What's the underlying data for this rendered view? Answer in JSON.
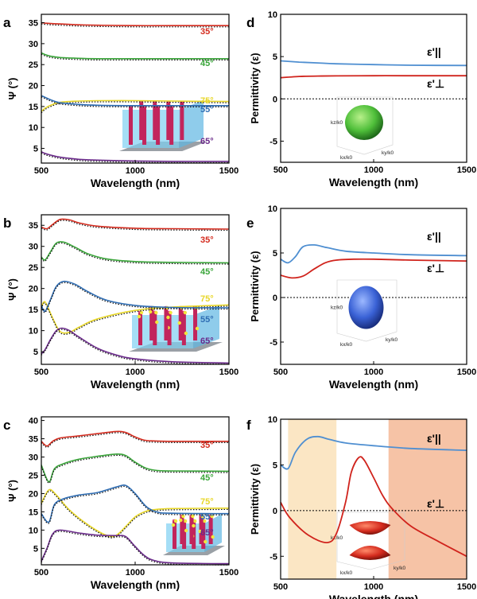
{
  "colors": {
    "red": "#d42b1e",
    "green": "#3aa53a",
    "yellow": "#e8d72a",
    "blue": "#2f6db3",
    "purple": "#6a2a8a",
    "perp": "#d0231c",
    "par": "#4f8fd1",
    "fit": "#111111",
    "band_yellow": "#fbe6c4",
    "band_orange": "#f6c3a6"
  },
  "chart_data": [
    {
      "panel": "a",
      "type": "line",
      "xlabel": "Wavelength (nm)",
      "ylabel": "Ψ (°)",
      "xlim": [
        500,
        1500
      ],
      "ylim": [
        1.5,
        37
      ],
      "xticks": [
        500,
        1000,
        1500
      ],
      "yticks": [
        5,
        10,
        15,
        20,
        25,
        30,
        35
      ],
      "inset": "nanorod-array",
      "series": [
        {
          "name": "35°",
          "color": "red",
          "x": [
            500,
            520,
            550,
            600,
            700,
            800,
            1000,
            1200,
            1500
          ],
          "y": [
            35.0,
            34.9,
            34.8,
            34.7,
            34.5,
            34.4,
            34.3,
            34.3,
            34.3
          ]
        },
        {
          "name": "45°",
          "color": "green",
          "x": [
            500,
            520,
            550,
            600,
            700,
            800,
            1000,
            1200,
            1500
          ],
          "y": [
            27.8,
            27.4,
            27.0,
            26.7,
            26.5,
            26.4,
            26.4,
            26.4,
            26.4
          ]
        },
        {
          "name": "75°",
          "color": "yellow",
          "x": [
            500,
            520,
            550,
            600,
            700,
            800,
            1000,
            1200,
            1500
          ],
          "y": [
            13.8,
            14.6,
            15.3,
            16.0,
            16.3,
            16.4,
            16.4,
            16.3,
            16.2
          ]
        },
        {
          "name": "55°",
          "color": "blue",
          "x": [
            500,
            520,
            550,
            600,
            700,
            800,
            1000,
            1200,
            1500
          ],
          "y": [
            17.6,
            17.2,
            16.6,
            15.9,
            15.5,
            15.3,
            15.2,
            15.2,
            15.2
          ]
        },
        {
          "name": "65°",
          "color": "purple",
          "x": [
            500,
            520,
            550,
            600,
            700,
            800,
            1000,
            1200,
            1500
          ],
          "y": [
            4.2,
            3.8,
            3.4,
            2.9,
            2.4,
            2.2,
            2.0,
            1.9,
            1.9
          ]
        }
      ]
    },
    {
      "panel": "b",
      "type": "line",
      "xlabel": "Wavelength (nm)",
      "ylabel": "Ψ (°)",
      "xlim": [
        500,
        1500
      ],
      "ylim": [
        2,
        37.5
      ],
      "xticks": [
        500,
        1000,
        1500
      ],
      "yticks": [
        5,
        10,
        15,
        20,
        25,
        30,
        35
      ],
      "inset": "nanorod-array-with-particles",
      "series": [
        {
          "name": "35°",
          "color": "red",
          "x": [
            500,
            530,
            560,
            600,
            650,
            700,
            800,
            1000,
            1200,
            1500
          ],
          "y": [
            34.6,
            34.2,
            35.2,
            36.4,
            36.3,
            35.6,
            34.8,
            34.3,
            34.2,
            34.1
          ]
        },
        {
          "name": "45°",
          "color": "green",
          "x": [
            500,
            520,
            550,
            580,
            620,
            680,
            750,
            850,
            1000,
            1200,
            1500
          ],
          "y": [
            27.5,
            26.8,
            28.8,
            30.8,
            31.0,
            29.8,
            28.2,
            27.0,
            26.4,
            26.2,
            26.1
          ]
        },
        {
          "name": "75°",
          "color": "yellow",
          "x": [
            500,
            520,
            560,
            600,
            650,
            700,
            800,
            1000,
            1200,
            1500
          ],
          "y": [
            15.5,
            16.8,
            13.0,
            9.8,
            9.6,
            10.8,
            12.8,
            14.8,
            15.6,
            16.1
          ]
        },
        {
          "name": "55°",
          "color": "blue",
          "x": [
            500,
            520,
            550,
            580,
            620,
            680,
            750,
            850,
            1000,
            1200,
            1500
          ],
          "y": [
            16.0,
            14.6,
            17.5,
            20.5,
            21.7,
            21.0,
            19.2,
            17.2,
            16.0,
            15.5,
            15.4
          ]
        },
        {
          "name": "65°",
          "color": "purple",
          "x": [
            500,
            520,
            550,
            580,
            610,
            650,
            700,
            800,
            900,
            1000,
            1200,
            1500
          ],
          "y": [
            4.5,
            5.5,
            8.0,
            10.0,
            10.6,
            10.0,
            8.5,
            5.8,
            4.2,
            3.3,
            2.6,
            2.3
          ]
        }
      ]
    },
    {
      "panel": "c",
      "type": "line",
      "xlabel": "Wavelength (nm)",
      "ylabel": "Ψ (°)",
      "xlim": [
        500,
        1500
      ],
      "ylim": [
        0.5,
        41
      ],
      "xticks": [
        500,
        1000,
        1500
      ],
      "yticks": [
        5,
        10,
        15,
        20,
        25,
        30,
        35,
        40
      ],
      "inset": "nanorod-array-with-particles",
      "series": [
        {
          "name": "35°",
          "color": "red",
          "x": [
            500,
            530,
            560,
            600,
            700,
            800,
            900,
            950,
            1000,
            1050,
            1100,
            1200,
            1500
          ],
          "y": [
            34.3,
            33.0,
            34.3,
            35.2,
            35.8,
            36.4,
            37.0,
            36.7,
            35.5,
            34.6,
            34.4,
            34.3,
            34.3
          ]
        },
        {
          "name": "45°",
          "color": "green",
          "x": [
            500,
            540,
            570,
            620,
            700,
            800,
            900,
            950,
            1000,
            1060,
            1120,
            1200,
            1500
          ],
          "y": [
            27.8,
            23.2,
            26.8,
            28.2,
            29.4,
            30.2,
            30.8,
            30.4,
            28.6,
            26.9,
            26.3,
            26.2,
            26.1
          ]
        },
        {
          "name": "75°",
          "color": "yellow",
          "x": [
            500,
            540,
            580,
            650,
            750,
            850,
            900,
            950,
            1000,
            1050,
            1100,
            1200,
            1500
          ],
          "y": [
            17.3,
            21.0,
            19.6,
            15.5,
            11.4,
            8.5,
            8.6,
            11.0,
            13.6,
            15.0,
            15.6,
            15.9,
            16.0
          ]
        },
        {
          "name": "55°",
          "color": "blue",
          "x": [
            500,
            540,
            570,
            620,
            700,
            800,
            900,
            950,
            1000,
            1060,
            1120,
            1200,
            1500
          ],
          "y": [
            14.5,
            12.2,
            17.0,
            18.6,
            19.6,
            20.3,
            21.8,
            22.2,
            20.0,
            16.4,
            14.9,
            14.6,
            14.5
          ]
        },
        {
          "name": "65°",
          "color": "purple",
          "x": [
            500,
            530,
            560,
            600,
            700,
            800,
            900,
            950,
            1000,
            1050,
            1100,
            1200,
            1500
          ],
          "y": [
            1.5,
            5.0,
            8.9,
            10.0,
            9.2,
            8.6,
            8.5,
            8.2,
            5.5,
            3.0,
            1.7,
            1.0,
            0.8
          ]
        }
      ]
    },
    {
      "panel": "d",
      "type": "line",
      "xlabel": "Wavelength (nm)",
      "ylabel": "Permittivity (ε)",
      "xlim": [
        500,
        1500
      ],
      "ylim": [
        -7.5,
        10
      ],
      "xticks": [
        500,
        1000,
        1500
      ],
      "yticks": [
        -5,
        0,
        5,
        10
      ],
      "inset": "green-ellipsoid",
      "inset_axis_labels": [
        "kz/k0",
        "kx/k0",
        "ky/k0"
      ],
      "series": [
        {
          "name": "ε'||",
          "color": "par",
          "x": [
            500,
            600,
            700,
            800,
            1000,
            1200,
            1500
          ],
          "y": [
            4.5,
            4.35,
            4.25,
            4.15,
            4.05,
            3.98,
            3.95
          ]
        },
        {
          "name": "ε'⊥",
          "color": "perp",
          "x": [
            500,
            600,
            700,
            800,
            1000,
            1200,
            1500
          ],
          "y": [
            2.5,
            2.65,
            2.7,
            2.72,
            2.74,
            2.74,
            2.74
          ]
        }
      ]
    },
    {
      "panel": "e",
      "type": "line",
      "xlabel": "Wavelength (nm)",
      "ylabel": "Permittivity (ε)",
      "xlim": [
        500,
        1500
      ],
      "ylim": [
        -7.5,
        10
      ],
      "xticks": [
        500,
        1000,
        1500
      ],
      "yticks": [
        -5,
        0,
        5,
        10
      ],
      "inset": "blue-ellipsoid",
      "inset_axis_labels": [
        "kz/k0",
        "kx/k0",
        "ky/k0"
      ],
      "series": [
        {
          "name": "ε'||",
          "color": "par",
          "x": [
            500,
            540,
            580,
            620,
            680,
            750,
            850,
            1000,
            1200,
            1500
          ],
          "y": [
            4.3,
            3.9,
            4.6,
            5.7,
            5.9,
            5.6,
            5.2,
            5.0,
            4.8,
            4.7
          ]
        },
        {
          "name": "ε'⊥",
          "color": "perp",
          "x": [
            500,
            560,
            620,
            680,
            740,
            800,
            900,
            1000,
            1200,
            1500
          ],
          "y": [
            2.5,
            2.2,
            2.4,
            3.2,
            3.9,
            4.2,
            4.3,
            4.3,
            4.2,
            4.1
          ]
        }
      ]
    },
    {
      "panel": "f",
      "type": "line",
      "xlabel": "Wavelength (nm)",
      "ylabel": "Permittivity (ε)",
      "xlim": [
        500,
        1500
      ],
      "ylim": [
        -7.5,
        10
      ],
      "xticks": [
        500,
        1000,
        1500
      ],
      "yticks": [
        -5,
        0,
        5,
        10
      ],
      "inset": "red-hyperboloid",
      "inset_axis_labels": [
        "kz/k0",
        "kx/k0",
        "ky/k0"
      ],
      "bands": [
        {
          "from": 540,
          "to": 800,
          "color": "band_yellow"
        },
        {
          "from": 1080,
          "to": 1500,
          "color": "band_orange"
        }
      ],
      "series": [
        {
          "name": "ε'||",
          "color": "par",
          "x": [
            500,
            540,
            580,
            640,
            700,
            760,
            850,
            1000,
            1200,
            1500
          ],
          "y": [
            5.0,
            4.6,
            6.4,
            7.8,
            8.1,
            7.8,
            7.4,
            7.1,
            6.8,
            6.6
          ]
        },
        {
          "name": "ε'⊥",
          "color": "perp",
          "x": [
            500,
            550,
            650,
            750,
            800,
            850,
            880,
            920,
            950,
            1000,
            1050,
            1100,
            1200,
            1350,
            1500
          ],
          "y": [
            0.9,
            -0.8,
            -2.7,
            -3.5,
            -2.5,
            1.0,
            4.2,
            5.8,
            5.5,
            3.6,
            1.6,
            0.2,
            -1.7,
            -3.4,
            -5.0
          ]
        }
      ]
    }
  ]
}
